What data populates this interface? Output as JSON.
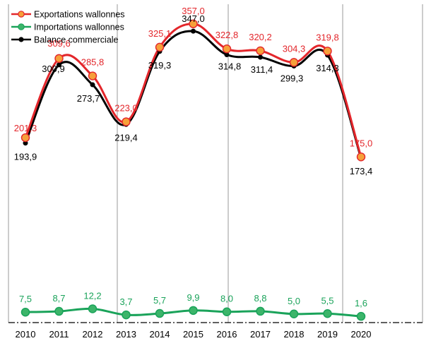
{
  "chart_data": {
    "type": "line",
    "categories": [
      "2010",
      "2011",
      "2012",
      "2013",
      "2014",
      "2015",
      "2016",
      "2017",
      "2018",
      "2019",
      "2020"
    ],
    "series": [
      {
        "name": "Exportations wallonnes",
        "color": "#e3262b",
        "marker_fill": "#f6a03a",
        "label_color": "#e3262b",
        "values": [
          201.3,
          309.6,
          285.8,
          223.0,
          325.1,
          357.0,
          322.8,
          320.2,
          304.3,
          319.8,
          175.0
        ],
        "labels": [
          "201,3",
          "309,6",
          "285,8",
          "223,0",
          "325,1",
          "357,0",
          "322,8",
          "320,2",
          "304,3",
          "319,8",
          "175,0"
        ]
      },
      {
        "name": "Importations wallonnes",
        "color": "#1aa35a",
        "marker_fill": "#3cb56a",
        "label_color": "#1aa35a",
        "values": [
          7.5,
          8.7,
          12.2,
          3.7,
          5.7,
          9.9,
          8.0,
          8.8,
          5.0,
          5.5,
          1.6
        ],
        "labels": [
          "7,5",
          "8,7",
          "12,2",
          "3,7",
          "5,7",
          "9,9",
          "8,0",
          "8,8",
          "5,0",
          "5,5",
          "1,6"
        ]
      },
      {
        "name": "Balance commerciale",
        "color": "#000000",
        "marker_fill": "#000000",
        "label_color": "#000000",
        "values": [
          193.9,
          300.9,
          273.7,
          219.4,
          319.3,
          347.0,
          314.8,
          311.4,
          299.3,
          314.3,
          173.4
        ],
        "labels": [
          "193,9",
          "300,9",
          "273,7",
          "219,4",
          "319,3",
          "347,0",
          "314,8",
          "311,4",
          "299,3",
          "314,3",
          "173,4"
        ]
      }
    ],
    "legend_position": "top-left",
    "grid": "vertical separators",
    "xlabel": "",
    "ylabel": "",
    "title": ""
  }
}
